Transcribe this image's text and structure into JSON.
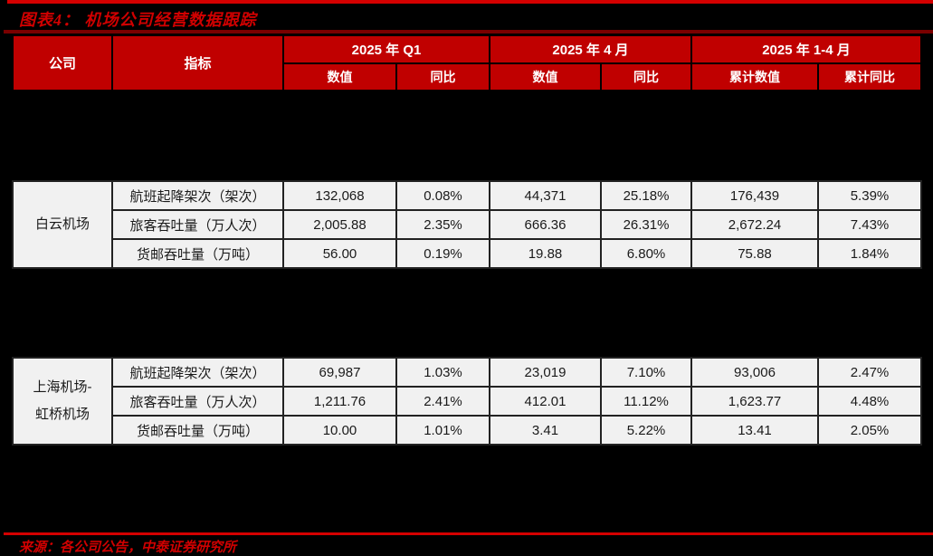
{
  "page": {
    "title": "图表4： 机场公司经营数据跟踪",
    "source": "来源：各公司公告，中泰证券研究所"
  },
  "colors": {
    "page_background": "#000000",
    "header_cell_red": "#c00000",
    "accent_bright_red": "#d40000",
    "title_red": "#d00000",
    "title_rule_dark_red": "#7a0000",
    "row_background": "#f1f1f1",
    "row_text": "#1a1a1a",
    "header_text": "#ffffff"
  },
  "table": {
    "header": {
      "company": "公司",
      "indicator": "指标",
      "groups": [
        "2025 年 Q1",
        "2025 年 4 月",
        "2025 年 1-4 月"
      ],
      "subs": [
        "数值",
        "同比",
        "数值",
        "同比",
        "累计数值",
        "累计同比"
      ]
    },
    "sections": [
      {
        "company": "白云机场",
        "company_lines": [
          "白云机场"
        ],
        "rows": [
          {
            "indicator": "航班起降架次（架次）",
            "values": [
              "132,068",
              "0.08%",
              "44,371",
              "25.18%",
              "176,439",
              "5.39%"
            ]
          },
          {
            "indicator": "旅客吞吐量（万人次）",
            "values": [
              "2,005.88",
              "2.35%",
              "666.36",
              "26.31%",
              "2,672.24",
              "7.43%"
            ]
          },
          {
            "indicator": "货邮吞吐量（万吨）",
            "values": [
              "56.00",
              "0.19%",
              "19.88",
              "6.80%",
              "75.88",
              "1.84%"
            ]
          }
        ]
      },
      {
        "company": "上海机场-虹桥机场",
        "company_lines": [
          "上海机场-",
          "虹桥机场"
        ],
        "rows": [
          {
            "indicator": "航班起降架次（架次）",
            "values": [
              "69,987",
              "1.03%",
              "23,019",
              "7.10%",
              "93,006",
              "2.47%"
            ]
          },
          {
            "indicator": "旅客吞吐量（万人次）",
            "values": [
              "1,211.76",
              "2.41%",
              "412.01",
              "11.12%",
              "1,623.77",
              "4.48%"
            ]
          },
          {
            "indicator": "货邮吞吐量（万吨）",
            "values": [
              "10.00",
              "1.01%",
              "3.41",
              "5.22%",
              "13.41",
              "2.05%"
            ]
          }
        ]
      }
    ]
  }
}
